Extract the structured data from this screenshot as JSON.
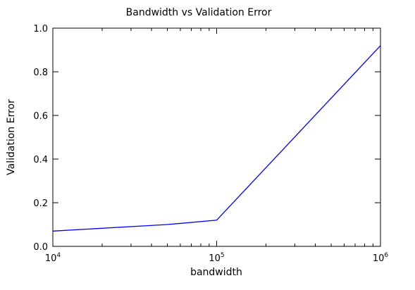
{
  "chart_data": {
    "type": "line",
    "title": "Bandwidth vs Validation Error",
    "xlabel": "bandwidth",
    "ylabel": "Validation Error",
    "xscale": "log",
    "xlim": [
      10000,
      1000000
    ],
    "ylim": [
      0.0,
      1.0
    ],
    "grid": false,
    "series": [
      {
        "x": [
          10000,
          50000,
          100000,
          1000000
        ],
        "y": [
          0.07,
          0.1,
          0.12,
          0.92
        ],
        "color": "#0000ff"
      }
    ],
    "x_ticks": [
      {
        "value": 10000,
        "base": "10",
        "exp": "4"
      },
      {
        "value": 100000,
        "base": "10",
        "exp": "5"
      },
      {
        "value": 1000000,
        "base": "10",
        "exp": "6"
      }
    ],
    "y_ticks": [
      {
        "value": 0.0,
        "label": "0.0"
      },
      {
        "value": 0.2,
        "label": "0.2"
      },
      {
        "value": 0.4,
        "label": "0.4"
      },
      {
        "value": 0.6,
        "label": "0.6"
      },
      {
        "value": 0.8,
        "label": "0.8"
      },
      {
        "value": 1.0,
        "label": "1.0"
      }
    ]
  }
}
